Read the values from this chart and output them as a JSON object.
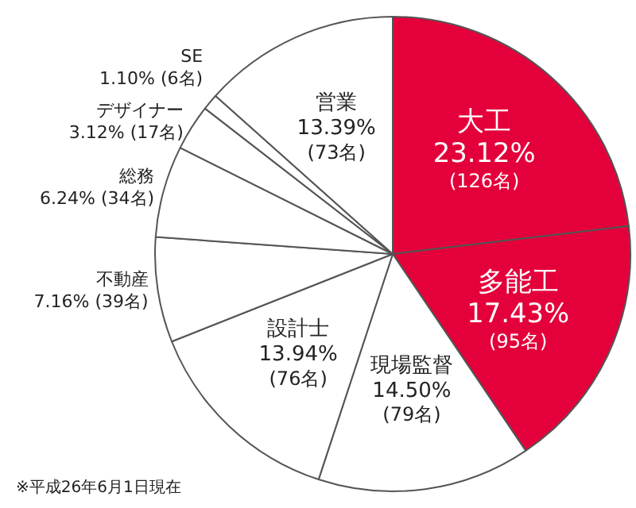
{
  "chart_data": {
    "type": "pie",
    "categories": [
      "大工",
      "多能工",
      "現場監督",
      "設計士",
      "不動産",
      "総務",
      "デザイナー",
      "SE",
      "営業"
    ],
    "values": [
      23.12,
      17.43,
      14.5,
      13.94,
      7.16,
      6.24,
      3.12,
      1.1,
      13.39
    ],
    "value_labels": [
      "23.12% (126名)",
      "17.43% (95名)",
      "14.50% (79名)",
      "13.94% (76名)",
      "7.16% (39名)",
      "6.24% (34名)",
      "3.12% (17名)",
      "1.10% (6名)",
      "13.39% (73名)"
    ],
    "colors": [
      "#e4003a",
      "#e4003a",
      "#ffffff",
      "#ffffff",
      "#ffffff",
      "#ffffff",
      "#ffffff",
      "#ffffff",
      "#ffffff"
    ],
    "legend": false,
    "annotations": [
      "※平成26年6月1日現在"
    ]
  }
}
